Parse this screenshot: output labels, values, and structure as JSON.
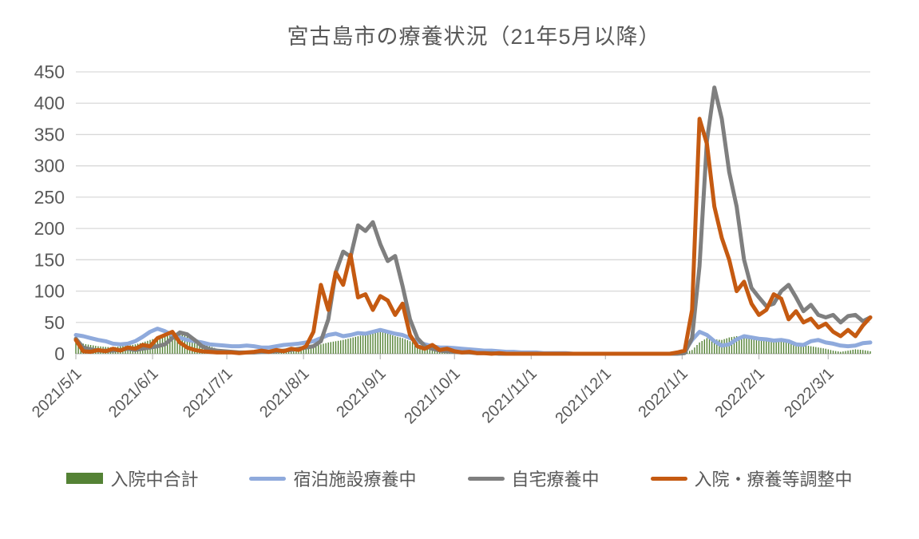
{
  "chart_data": {
    "type": "line",
    "title": "宮古島市の療養状況（21年5月以降）",
    "xlabel": "",
    "ylabel": "",
    "ylim": [
      0,
      450
    ],
    "ytick_step": 50,
    "grid": "horizontal",
    "legend_position": "bottom",
    "x_start_date": "2021/5/1",
    "x_step_days": 3,
    "x_total_days": 321,
    "x_ticks": [
      {
        "label": "2021/5/1",
        "day": 0
      },
      {
        "label": "2021/6/1",
        "day": 31
      },
      {
        "label": "2021/7/1",
        "day": 61
      },
      {
        "label": "2021/8/1",
        "day": 92
      },
      {
        "label": "2021/9/1",
        "day": 123
      },
      {
        "label": "2021/10/1",
        "day": 153
      },
      {
        "label": "2021/11/1",
        "day": 184
      },
      {
        "label": "2021/12/1",
        "day": 214
      },
      {
        "label": "2022/1/1",
        "day": 245
      },
      {
        "label": "2022/2/1",
        "day": 276
      },
      {
        "label": "2022/3/1",
        "day": 304
      }
    ],
    "series": [
      {
        "name": "入院中合計",
        "slug": "hospitalized-total",
        "type": "bar",
        "color": "#548235",
        "values": [
          18,
          16,
          14,
          12,
          11,
          10,
          12,
          13,
          15,
          18,
          22,
          26,
          30,
          33,
          34,
          30,
          25,
          18,
          12,
          8,
          6,
          5,
          4,
          4,
          4,
          5,
          5,
          6,
          6,
          7,
          8,
          10,
          12,
          15,
          18,
          20,
          22,
          25,
          28,
          31,
          33,
          36,
          32,
          28,
          25,
          20,
          15,
          12,
          10,
          8,
          6,
          5,
          4,
          3,
          3,
          2,
          2,
          1,
          1,
          1,
          1,
          0,
          0,
          0,
          0,
          0,
          0,
          0,
          0,
          0,
          0,
          0,
          0,
          0,
          0,
          0,
          0,
          0,
          0,
          0,
          0,
          0,
          2,
          6,
          18,
          25,
          23,
          22,
          26,
          28,
          27,
          24,
          26,
          22,
          20,
          24,
          22,
          18,
          14,
          12,
          10,
          8,
          5,
          3,
          5,
          7,
          6,
          4
        ]
      },
      {
        "name": "宿泊施設療養中",
        "slug": "hotel-care",
        "type": "line",
        "color": "#8FAADC",
        "values": [
          30,
          28,
          25,
          22,
          20,
          16,
          15,
          16,
          20,
          27,
          35,
          40,
          36,
          30,
          26,
          22,
          20,
          18,
          15,
          14,
          13,
          12,
          12,
          13,
          12,
          10,
          10,
          12,
          14,
          15,
          16,
          18,
          20,
          25,
          30,
          32,
          28,
          30,
          33,
          32,
          35,
          38,
          35,
          32,
          30,
          25,
          20,
          15,
          12,
          10,
          10,
          9,
          8,
          7,
          6,
          5,
          5,
          4,
          3,
          3,
          2,
          2,
          2,
          1,
          1,
          1,
          1,
          0,
          0,
          0,
          0,
          0,
          0,
          0,
          0,
          0,
          0,
          0,
          0,
          0,
          0,
          1,
          4,
          22,
          35,
          30,
          20,
          13,
          15,
          23,
          28,
          26,
          24,
          23,
          21,
          22,
          20,
          15,
          14,
          20,
          22,
          18,
          16,
          13,
          12,
          13,
          17,
          18
        ]
      },
      {
        "name": "自宅療養中",
        "slug": "home-care",
        "type": "line",
        "color": "#7F7F7F",
        "values": [
          24,
          10,
          7,
          5,
          5,
          5,
          6,
          8,
          6,
          8,
          10,
          12,
          15,
          25,
          34,
          31,
          22,
          12,
          7,
          5,
          4,
          3,
          2,
          2,
          2,
          3,
          3,
          4,
          5,
          6,
          8,
          10,
          12,
          20,
          55,
          130,
          163,
          155,
          205,
          196,
          210,
          175,
          148,
          156,
          108,
          55,
          25,
          12,
          8,
          5,
          4,
          3,
          2,
          2,
          1,
          1,
          1,
          0,
          0,
          0,
          0,
          0,
          0,
          0,
          0,
          0,
          0,
          0,
          0,
          0,
          0,
          0,
          0,
          0,
          0,
          0,
          0,
          0,
          0,
          0,
          0,
          0,
          1,
          25,
          140,
          340,
          425,
          375,
          290,
          235,
          150,
          105,
          90,
          76,
          80,
          100,
          110,
          90,
          68,
          78,
          62,
          58,
          62,
          50,
          60,
          62,
          52,
          58
        ]
      },
      {
        "name": "入院・療養等調整中",
        "slug": "adjustment-pending",
        "type": "line",
        "color": "#C55A11",
        "values": [
          22,
          4,
          3,
          6,
          4,
          8,
          5,
          10,
          8,
          14,
          12,
          25,
          30,
          35,
          18,
          10,
          6,
          4,
          3,
          2,
          2,
          2,
          1,
          2,
          3,
          5,
          3,
          6,
          4,
          8,
          6,
          12,
          35,
          110,
          70,
          130,
          110,
          158,
          90,
          95,
          70,
          92,
          85,
          62,
          80,
          30,
          12,
          8,
          14,
          6,
          8,
          4,
          2,
          3,
          1,
          1,
          0,
          1,
          0,
          0,
          0,
          0,
          0,
          0,
          0,
          0,
          0,
          0,
          0,
          0,
          0,
          0,
          0,
          0,
          0,
          0,
          0,
          0,
          0,
          0,
          0,
          2,
          5,
          70,
          375,
          335,
          235,
          185,
          150,
          100,
          115,
          80,
          62,
          70,
          95,
          88,
          55,
          68,
          50,
          56,
          42,
          48,
          35,
          28,
          38,
          28,
          45,
          58
        ]
      }
    ],
    "axis_text_color": "#595959",
    "gridline_color": "#D9D9D9",
    "axis_line_color": "#BFBFBF"
  }
}
